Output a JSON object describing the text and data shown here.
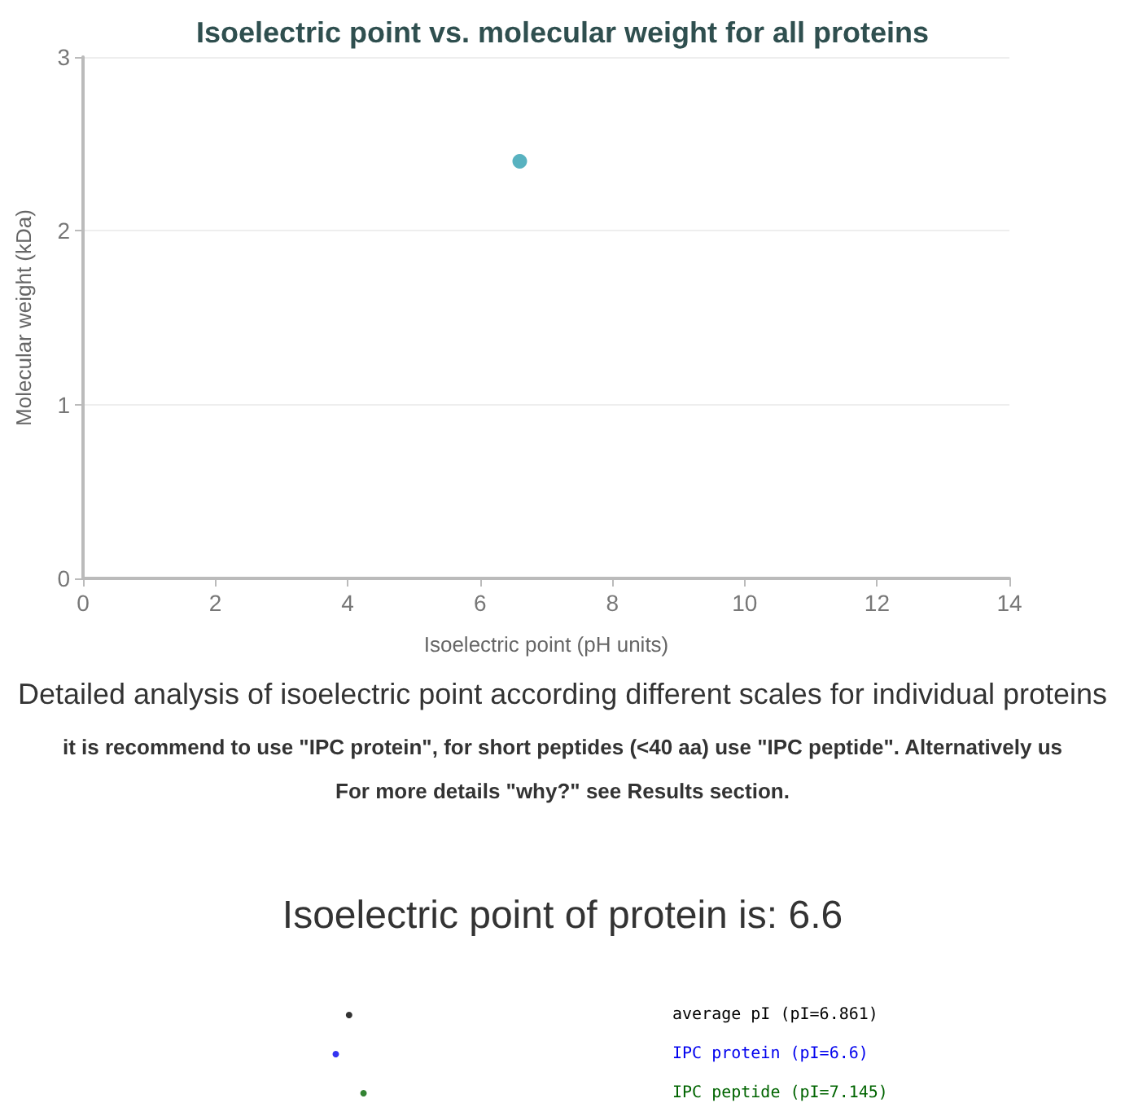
{
  "chart_data": [
    {
      "type": "scatter",
      "title": "Isoelectric point vs. molecular weight for all proteins",
      "xlabel": "Isoelectric point (pH units)",
      "ylabel": "Molecular weight (kDa)",
      "x": [
        6.6
      ],
      "values": [
        2.4
      ],
      "color": "#2e9fb0",
      "marker": "circle",
      "xlim": [
        0,
        14
      ],
      "xticks": [
        0,
        2,
        4,
        6,
        8,
        10,
        12,
        14
      ],
      "ylim": [
        0,
        3
      ],
      "yticks": [
        0,
        1,
        2,
        3
      ],
      "grid": "y",
      "annotations": [
        "Detailed analysis of isoelectric point according different scales for individual proteins",
        "it is recommend to use \"IPC protein\", for short peptides (<40 aa) use \"IPC peptide\". Alternatively us",
        "For more details \"why?\" see Results section."
      ]
    },
    {
      "type": "other",
      "title": "Isoelectric point of protein is: 6.6",
      "categories": [
        "average pI",
        "IPC protein",
        "IPC peptide"
      ],
      "values": [
        6.861,
        6.6,
        7.145
      ],
      "value_labels": [
        "(pI=6.861)",
        "(pI=6.6)",
        "(pI=7.145)"
      ],
      "colors": [
        "#000000",
        "#0000ee",
        "#006400"
      ]
    }
  ]
}
